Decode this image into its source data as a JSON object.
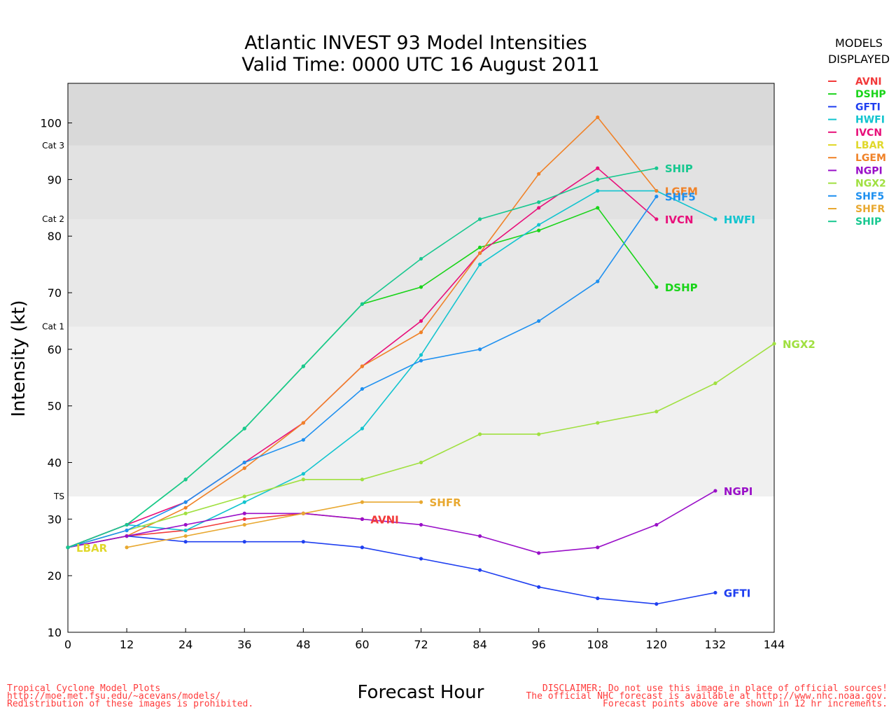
{
  "header": {
    "title_line1": "Atlantic INVEST 93 Model Intensities",
    "title_line2": "Valid Time: 0000 UTC 16 August 2011"
  },
  "legend": {
    "heading_line1": "MODELS",
    "heading_line2": "DISPLAYED",
    "placement": "right"
  },
  "footer": {
    "left": [
      "Tropical Cyclone Model Plots",
      "http://moe.met.fsu.edu/~acevans/models/",
      "Redistribution of these images is prohibited."
    ],
    "right": [
      "DISCLAIMER: Do not use this image in place of official sources!",
      "The official NHC forecast is available at http://www.nhc.noaa.gov.",
      "Forecast points above are shown in 12 hr increments."
    ],
    "color": "#ff3b3b"
  },
  "chart_data": {
    "type": "line",
    "title": "Atlantic INVEST 93 Model Intensities\nValid Time: 0000 UTC 16 August 2011",
    "xlabel": "Forecast Hour",
    "ylabel": "Intensity (kt)",
    "xlim": [
      0,
      144
    ],
    "ylim": [
      10,
      107
    ],
    "x_ticks": [
      0,
      12,
      24,
      36,
      48,
      60,
      72,
      84,
      96,
      108,
      120,
      132,
      144
    ],
    "y_ticks": [
      10,
      20,
      30,
      40,
      50,
      60,
      70,
      80,
      90,
      100
    ],
    "grid": false,
    "bands": [
      {
        "label": "TS",
        "from": 34,
        "to": 64,
        "color": "#f0f0f0"
      },
      {
        "label": "Cat 1",
        "from": 64,
        "to": 83,
        "color": "#e8e8e8"
      },
      {
        "label": "Cat 2",
        "from": 83,
        "to": 96,
        "color": "#e2e2e2"
      },
      {
        "label": "Cat 3",
        "from": 96,
        "to": 107,
        "color": "#d9d9d9"
      }
    ],
    "series": [
      {
        "name": "AVNI",
        "color": "#f23a3a",
        "x": [
          0,
          12,
          24,
          36,
          48,
          60
        ],
        "y": [
          25,
          27,
          28,
          30,
          31,
          30
        ],
        "end_label": "AVNI"
      },
      {
        "name": "DSHP",
        "color": "#19d419",
        "x": [
          0,
          12,
          24,
          36,
          48,
          60,
          72,
          84,
          96,
          108,
          120
        ],
        "y": [
          25,
          29,
          37,
          46,
          57,
          68,
          71,
          78,
          81,
          85,
          71
        ],
        "end_label": "DSHP"
      },
      {
        "name": "GFTI",
        "color": "#1f3ff0",
        "x": [
          0,
          12,
          24,
          36,
          48,
          60,
          72,
          84,
          96,
          108,
          120,
          132
        ],
        "y": [
          25,
          27,
          26,
          26,
          26,
          25,
          23,
          21,
          18,
          16,
          15,
          17
        ],
        "end_label": "GFTI"
      },
      {
        "name": "HWFI",
        "color": "#12c4cf",
        "x": [
          0,
          12,
          24,
          36,
          48,
          60,
          72,
          84,
          96,
          108,
          120,
          132
        ],
        "y": [
          25,
          29,
          28,
          33,
          38,
          46,
          59,
          75,
          82,
          88,
          88,
          83
        ],
        "end_label": "HWFI"
      },
      {
        "name": "IVCN",
        "color": "#e8107a",
        "x": [
          0,
          12,
          24,
          36,
          48,
          60,
          72,
          84,
          96,
          108,
          120
        ],
        "y": [
          25,
          29,
          33,
          40,
          47,
          57,
          65,
          77,
          85,
          92,
          83
        ],
        "end_label": "IVCN"
      },
      {
        "name": "LBAR",
        "color": "#e0d82a",
        "x": [
          0
        ],
        "y": [
          25
        ],
        "end_label": "LBAR"
      },
      {
        "name": "LGEM",
        "color": "#f08228",
        "x": [
          0,
          12,
          24,
          36,
          48,
          60,
          72,
          84,
          96,
          108,
          120
        ],
        "y": [
          25,
          27,
          32,
          39,
          47,
          57,
          63,
          77,
          91,
          101,
          88
        ],
        "end_label": "LGEM"
      },
      {
        "name": "NGPI",
        "color": "#9a10c8",
        "x": [
          0,
          12,
          24,
          36,
          48,
          60,
          72,
          84,
          96,
          108,
          120,
          132
        ],
        "y": [
          25,
          27,
          29,
          31,
          31,
          30,
          29,
          27,
          24,
          25,
          29,
          35
        ],
        "end_label": "NGPI"
      },
      {
        "name": "NGX2",
        "color": "#a0e040",
        "x": [
          0,
          12,
          24,
          36,
          48,
          60,
          72,
          84,
          96,
          108,
          120,
          132,
          144
        ],
        "y": [
          25,
          28,
          31,
          34,
          37,
          37,
          40,
          45,
          45,
          47,
          49,
          54,
          61
        ],
        "end_label": "NGX2"
      },
      {
        "name": "SHF5",
        "color": "#1e90f0",
        "x": [
          0,
          12,
          24,
          36,
          48,
          60,
          72,
          84,
          96,
          108,
          120
        ],
        "y": [
          25,
          28,
          33,
          40,
          44,
          53,
          58,
          60,
          65,
          72,
          87
        ],
        "end_label": "SHF5"
      },
      {
        "name": "SHFR",
        "color": "#e8a830",
        "x": [
          12,
          24,
          36,
          48,
          60,
          72
        ],
        "y": [
          25,
          27,
          29,
          31,
          33,
          33
        ],
        "end_label": "SHFR"
      },
      {
        "name": "SHIP",
        "color": "#18c890",
        "x": [
          0,
          12,
          24,
          36,
          48,
          60,
          72,
          84,
          96,
          108,
          120
        ],
        "y": [
          25,
          29,
          37,
          46,
          57,
          68,
          76,
          83,
          86,
          90,
          92
        ],
        "end_label": "SHIP"
      }
    ]
  }
}
